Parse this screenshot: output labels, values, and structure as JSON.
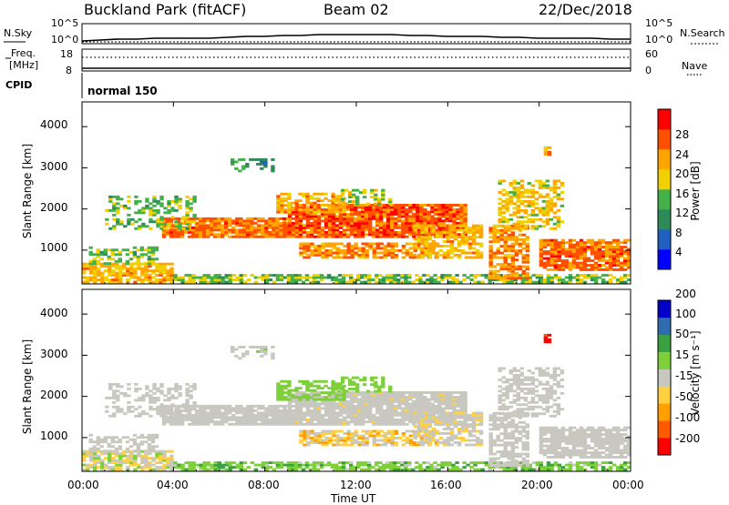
{
  "header": {
    "station": "Buckland Park (fitACF)",
    "beam": "Beam 02",
    "date": "22/Dec/2018"
  },
  "noise_panel": {
    "left_label": "N.Sky",
    "right_label": "N.Search",
    "ticks_left": [
      "10^5",
      "10^0"
    ],
    "ticks_right": [
      "10^5",
      "10^0"
    ]
  },
  "freq_panel": {
    "left_label_1": "Freq.",
    "left_label_2": "[MHz]",
    "right_label": "Nave",
    "ticks_left": [
      "18",
      "8"
    ],
    "ticks_right": [
      "60",
      "0"
    ]
  },
  "cpid": {
    "label": "CPID",
    "mode": "normal 150"
  },
  "colors": {
    "power": [
      "#0000ff",
      "#2060c0",
      "#2e8b57",
      "#44b04a",
      "#f0d000",
      "#ffa500",
      "#ff5000",
      "#ff0000"
    ],
    "velocity": [
      "#ff0000",
      "#ff5a00",
      "#ffa000",
      "#ffd040",
      "#c8c8c0",
      "#7ed03a",
      "#3aa040",
      "#2e6db0",
      "#0000c8"
    ]
  },
  "chart_data": [
    {
      "type": "heatmap",
      "name": "Power",
      "ylabel": "Slant Range [km]",
      "y_ticks": [
        1000,
        2000,
        3000,
        4000
      ],
      "ylim": [
        180,
        4600
      ],
      "colorbar_label": "Power [dB]",
      "colorbar_ticks": [
        "4",
        "8",
        "12",
        "16",
        "20",
        "24",
        "28"
      ],
      "clim": [
        0,
        32
      ]
    },
    {
      "type": "heatmap",
      "name": "Velocity",
      "ylabel": "Slant Range [km]",
      "xlabel": "Time UT",
      "x_ticks": [
        "00:00",
        "04:00",
        "08:00",
        "12:00",
        "16:00",
        "20:00",
        "00:00"
      ],
      "y_ticks": [
        1000,
        2000,
        3000,
        4000
      ],
      "ylim": [
        180,
        4600
      ],
      "colorbar_label": "Velocity [m s⁻¹]",
      "colorbar_ticks": [
        "-200",
        "-100",
        "-50",
        "-15",
        "15",
        "50",
        "100",
        "200"
      ],
      "clim": [
        -250,
        250
      ]
    }
  ]
}
